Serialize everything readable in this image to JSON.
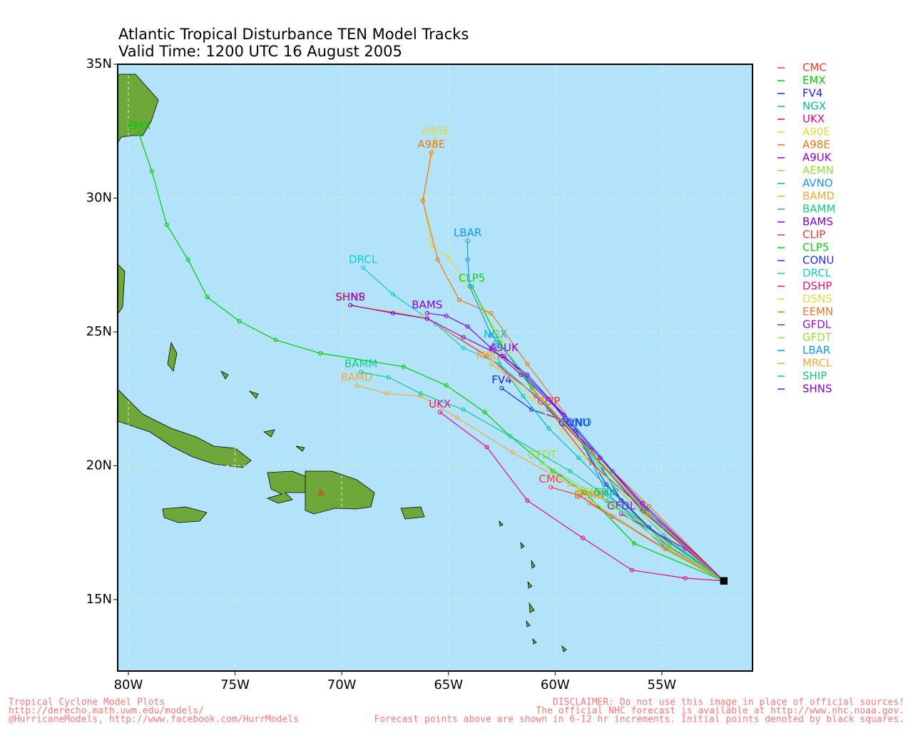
{
  "chart_data": {
    "type": "track",
    "title": "Atlantic Tropical Disturbance TEN Model Tracks",
    "subtitle": "Valid Time: 1200 UTC 16 August 2005",
    "xlim": [
      -80.5,
      -50.75
    ],
    "ylim": [
      12.33,
      35
    ],
    "xticks": [
      {
        "value": -80,
        "label": "80W"
      },
      {
        "value": -75,
        "label": "75W"
      },
      {
        "value": -70,
        "label": "70W"
      },
      {
        "value": -65,
        "label": "65W"
      },
      {
        "value": -60,
        "label": "60W"
      },
      {
        "value": -55,
        "label": "55W"
      }
    ],
    "yticks": [
      {
        "value": 15,
        "label": "15N"
      },
      {
        "value": 20,
        "label": "20N"
      },
      {
        "value": 25,
        "label": "25N"
      },
      {
        "value": 30,
        "label": "30N"
      },
      {
        "value": 35,
        "label": "35N"
      }
    ],
    "grid": true,
    "series": [
      {
        "name": "CMC",
        "color": "#ff3333",
        "x": [
          -52.1,
          -54.9,
          -57.3,
          -58.9,
          -60.2
        ],
        "values": [
          15.7,
          16.9,
          18.1,
          18.9,
          19.2
        ]
      },
      {
        "name": "EMX",
        "color": "#00cc00",
        "x": [
          -52.1,
          -56.3,
          -58.6,
          -60.1,
          -62.1,
          -63.3,
          -65.1,
          -67.1,
          -71.0,
          -73.1,
          -74.8,
          -76.3,
          -77.2,
          -78.2,
          -78.9,
          -79.5
        ],
        "values": [
          15.7,
          17.1,
          19.0,
          19.8,
          21.1,
          22.0,
          23.0,
          23.7,
          24.2,
          24.7,
          25.4,
          26.3,
          27.7,
          29.0,
          31.0,
          32.4
        ]
      },
      {
        "name": "FV4",
        "color": "#2222dd",
        "x": [
          -52.1,
          -54.6,
          -56.9,
          -58.3,
          -59.6,
          -61.1,
          -62.5
        ],
        "values": [
          15.7,
          16.9,
          18.7,
          20.6,
          21.7,
          22.1,
          22.9
        ]
      },
      {
        "name": "NGX",
        "color": "#00bbbb",
        "x": [
          -52.1,
          -54.9,
          -57.3,
          -58.9,
          -60.3,
          -61.5,
          -62.6,
          -62.8
        ],
        "values": [
          15.7,
          17.1,
          19.0,
          20.3,
          21.4,
          22.6,
          23.8,
          24.6
        ]
      },
      {
        "name": "UKX",
        "color": "#ee0088",
        "x": [
          -52.1,
          -53.9,
          -56.4,
          -58.7,
          -61.3,
          -63.2,
          -65.4
        ],
        "values": [
          15.7,
          15.8,
          16.1,
          17.3,
          18.7,
          20.7,
          22.0
        ]
      },
      {
        "name": "A90E",
        "color": "#dddd33",
        "x": [
          -52.1,
          -55.8,
          -57.6,
          -59.6,
          -61.6,
          -63.3,
          -65.0,
          -65.8,
          -66.2,
          -65.8,
          -65.6
        ],
        "values": [
          15.7,
          18.3,
          19.8,
          21.4,
          23.5,
          25.7,
          27.8,
          28.2,
          30.0,
          31.6,
          32.2
        ]
      },
      {
        "name": "A98E",
        "color": "#ee7711",
        "x": [
          -52.1,
          -55.6,
          -57.3,
          -59.3,
          -61.3,
          -63.0,
          -64.5,
          -65.5,
          -66.2,
          -65.8
        ],
        "values": [
          15.7,
          18.5,
          19.8,
          21.7,
          23.8,
          25.7,
          26.2,
          27.7,
          29.9,
          31.7
        ]
      },
      {
        "name": "A9UK",
        "color": "#9900cc",
        "x": [
          -52.1,
          -55.9,
          -58.3,
          -60.3,
          -62.4
        ],
        "values": [
          15.7,
          18.3,
          20.5,
          22.5,
          24.1
        ]
      },
      {
        "name": "AEMN",
        "color": "#99dd33",
        "x": [
          -52.1,
          -54.9,
          -58.3
        ],
        "values": [
          15.7,
          16.9,
          18.7
        ]
      },
      {
        "name": "AVNO",
        "color": "#1199ee",
        "x": [
          -52.1,
          -54.8,
          -57.6,
          -59.0
        ],
        "values": [
          15.7,
          16.9,
          19.0,
          21.3
        ]
      },
      {
        "name": "BAMD",
        "color": "#eeaa33",
        "x": [
          -52.1,
          -54.8,
          -56.9,
          -59.3,
          -62.0,
          -64.6,
          -66.3,
          -67.9,
          -69.3
        ],
        "values": [
          15.7,
          17.1,
          18.5,
          19.3,
          20.5,
          21.8,
          22.6,
          22.7,
          23.0
        ]
      },
      {
        "name": "BAMM",
        "color": "#11cc88",
        "x": [
          -52.1,
          -54.6,
          -56.9,
          -59.3,
          -62.1,
          -64.3,
          -66.3,
          -67.8,
          -69.1
        ],
        "values": [
          15.7,
          17.1,
          18.5,
          19.8,
          21.1,
          22.1,
          22.7,
          23.3,
          23.5
        ]
      },
      {
        "name": "BAMS",
        "color": "#8800dd",
        "x": [
          -52.1,
          -55.9,
          -57.9,
          -59.6,
          -61.6,
          -63.0,
          -64.1,
          -65.1,
          -66.0
        ],
        "values": [
          15.7,
          18.5,
          20.3,
          21.9,
          23.4,
          24.4,
          25.2,
          25.6,
          25.7
        ]
      },
      {
        "name": "CLIP",
        "color": "#ee3333",
        "x": [
          -52.1,
          -55.6,
          -58.3,
          -60.3
        ],
        "values": [
          15.7,
          18.2,
          20.1,
          22.1
        ]
      },
      {
        "name": "CLP5",
        "color": "#11cc11",
        "x": [
          -52.1,
          -55.8,
          -58.6,
          -61.1,
          -62.6,
          -63.9
        ],
        "values": [
          15.7,
          18.3,
          20.7,
          22.9,
          24.6,
          26.7
        ]
      },
      {
        "name": "CONU",
        "color": "#2233ee",
        "x": [
          -52.1,
          -55.6,
          -57.6,
          -59.1
        ],
        "values": [
          15.7,
          17.7,
          19.3,
          21.3
        ]
      },
      {
        "name": "DRCL",
        "color": "#11cccc",
        "x": [
          -52.1,
          -54.9,
          -57.3,
          -59.3,
          -60.9,
          -62.6,
          -64.3,
          -65.6,
          -67.6,
          -69.0
        ],
        "values": [
          15.7,
          17.4,
          19.3,
          21.4,
          22.6,
          23.8,
          24.4,
          25.3,
          26.4,
          27.4
        ]
      },
      {
        "name": "DSHP",
        "color": "#ee1177",
        "x": [
          -52.1,
          -55.6,
          -58.3,
          -60.9,
          -63.2,
          -66.0,
          -69.6
        ],
        "values": [
          15.7,
          18.2,
          20.5,
          22.6,
          24.1,
          25.5,
          26.0
        ]
      },
      {
        "name": "DSNS",
        "color": "#dddd44",
        "x": [
          -52.1,
          -55.8,
          -58.6,
          -61.1,
          -63.3,
          -66.2,
          -69.6
        ],
        "values": [
          15.7,
          18.1,
          20.3,
          22.5,
          24.2,
          25.6,
          26.0
        ]
      },
      {
        "name": "EEMN",
        "color": "#ee7722",
        "x": [
          -52.1,
          -54.8,
          -58.4
        ],
        "values": [
          15.7,
          16.9,
          18.6
        ]
      },
      {
        "name": "GFDL",
        "color": "#9911cc",
        "x": [
          -52.1,
          -53.9,
          -56.9
        ],
        "values": [
          15.7,
          16.9,
          18.2
        ]
      },
      {
        "name": "GFDT",
        "color": "#99dd33",
        "x": [
          -52.1,
          -54.6,
          -57.3,
          -60.6
        ],
        "values": [
          15.7,
          16.9,
          18.5,
          20.1
        ]
      },
      {
        "name": "LBAR",
        "color": "#1199ee",
        "x": [
          -52.1,
          -54.9,
          -57.3,
          -59.3,
          -61.3,
          -63.0,
          -64.0,
          -64.1,
          -64.1
        ],
        "values": [
          15.7,
          17.7,
          19.8,
          21.7,
          23.3,
          24.9,
          26.7,
          27.7,
          28.4
        ]
      },
      {
        "name": "MRCL",
        "color": "#eeaa33",
        "x": [
          -52.1,
          -55.6,
          -58.3,
          -60.6,
          -63.0
        ],
        "values": [
          15.7,
          18.2,
          20.5,
          22.5,
          23.8
        ]
      },
      {
        "name": "SHIP",
        "color": "#11cc88",
        "x": [
          -52.1,
          -54.6,
          -57.6
        ],
        "values": [
          15.7,
          17.1,
          18.7
        ]
      },
      {
        "name": "SHNS",
        "color": "#8800dd",
        "x": [
          -52.1,
          -55.9,
          -57.9,
          -59.6,
          -61.3,
          -62.5,
          -64.3,
          -66.0,
          -67.6,
          -69.6
        ],
        "values": [
          15.7,
          18.6,
          20.3,
          21.9,
          23.4,
          24.1,
          24.8,
          25.5,
          25.7,
          26.0
        ]
      }
    ],
    "footer_left": [
      "Tropical Cyclone Model Plots",
      "http://derecho.math.uwm.edu/models/",
      "@HurricaneModels, http://www.facebook.com/HurrModels"
    ],
    "footer_right": [
      "DISCLAIMER: Do not use this image in place of official sources!",
      "The official NHC forecast is available at http://www.nhc.noaa.gov.",
      "Forecast points above are shown in 6-12 hr increments. Initial points denoted by black squares."
    ]
  }
}
